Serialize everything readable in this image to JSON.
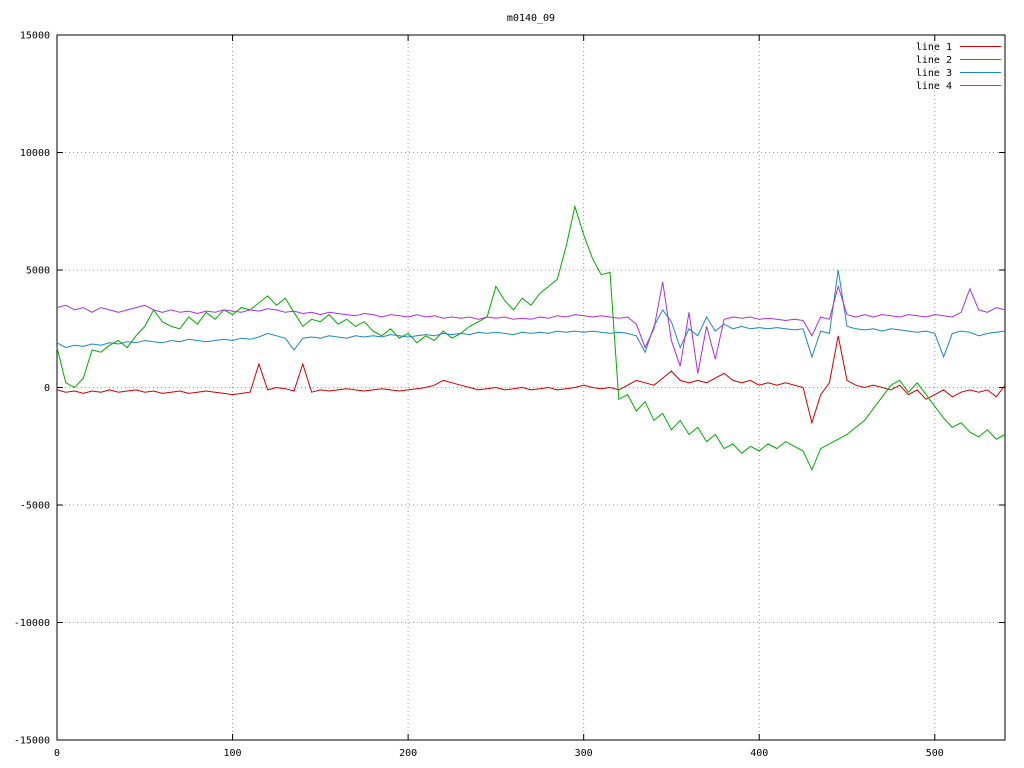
{
  "chart_data": {
    "type": "line",
    "title": "m0140_09",
    "xlabel": "",
    "ylabel": "",
    "xlim": [
      0,
      540
    ],
    "ylim": [
      -15000,
      15000
    ],
    "xticks": [
      0,
      100,
      200,
      300,
      400,
      500
    ],
    "yticks": [
      -15000,
      -10000,
      -5000,
      0,
      5000,
      10000,
      15000
    ],
    "grid": true,
    "grid_style": "dotted",
    "legend_position": "top-right",
    "x": [
      0,
      5,
      10,
      15,
      20,
      25,
      30,
      35,
      40,
      45,
      50,
      55,
      60,
      65,
      70,
      75,
      80,
      85,
      90,
      95,
      100,
      105,
      110,
      115,
      120,
      125,
      130,
      135,
      140,
      145,
      150,
      155,
      160,
      165,
      170,
      175,
      180,
      185,
      190,
      195,
      200,
      205,
      210,
      215,
      220,
      225,
      230,
      235,
      240,
      245,
      250,
      255,
      260,
      265,
      270,
      275,
      280,
      285,
      290,
      295,
      300,
      305,
      310,
      315,
      320,
      325,
      330,
      335,
      340,
      345,
      350,
      355,
      360,
      365,
      370,
      375,
      380,
      385,
      390,
      395,
      400,
      405,
      410,
      415,
      420,
      425,
      430,
      435,
      440,
      445,
      450,
      455,
      460,
      465,
      470,
      475,
      480,
      485,
      490,
      495,
      500,
      505,
      510,
      515,
      520,
      525,
      530,
      535,
      540
    ],
    "series": [
      {
        "name": "line 1",
        "color": "#cc0000",
        "values": [
          -100,
          -200,
          -150,
          -250,
          -150,
          -200,
          -100,
          -200,
          -150,
          -100,
          -200,
          -150,
          -250,
          -200,
          -150,
          -250,
          -200,
          -150,
          -200,
          -250,
          -300,
          -250,
          -200,
          1000,
          -100,
          0,
          -50,
          -150,
          1000,
          -200,
          -100,
          -150,
          -100,
          -50,
          -100,
          -150,
          -100,
          -50,
          -100,
          -150,
          -100,
          -50,
          0,
          100,
          300,
          200,
          100,
          0,
          -100,
          -50,
          0,
          -100,
          -50,
          0,
          -100,
          -50,
          0,
          -100,
          -50,
          0,
          100,
          0,
          -50,
          0,
          -100,
          100,
          300,
          200,
          100,
          400,
          700,
          300,
          200,
          300,
          200,
          400,
          600,
          300,
          200,
          300,
          100,
          200,
          100,
          200,
          100,
          0,
          -1500,
          -300,
          200,
          2200,
          300,
          100,
          0,
          100,
          0,
          -100,
          100,
          -300,
          -100,
          -500,
          -300,
          -100,
          -400,
          -200,
          -100,
          -200,
          -100,
          -400,
          100
        ]
      },
      {
        "name": "line 2",
        "color": "#00aa00",
        "values": [
          1700,
          200,
          0,
          400,
          1600,
          1500,
          1800,
          2000,
          1700,
          2200,
          2600,
          3300,
          2800,
          2600,
          2500,
          3000,
          2700,
          3200,
          2900,
          3300,
          3100,
          3400,
          3300,
          3600,
          3900,
          3500,
          3800,
          3200,
          2600,
          2900,
          2800,
          3100,
          2700,
          2900,
          2600,
          2800,
          2400,
          2200,
          2500,
          2100,
          2300,
          1900,
          2200,
          2000,
          2400,
          2100,
          2300,
          2600,
          2800,
          3000,
          4300,
          3700,
          3300,
          3800,
          3500,
          4000,
          4300,
          4600,
          6000,
          7700,
          6500,
          5500,
          4800,
          4900,
          -500,
          -300,
          -1000,
          -600,
          -1400,
          -1100,
          -1800,
          -1400,
          -2000,
          -1700,
          -2300,
          -2000,
          -2600,
          -2400,
          -2800,
          -2500,
          -2700,
          -2400,
          -2600,
          -2300,
          -2500,
          -2700,
          -3500,
          -2600,
          -2400,
          -2200,
          -2000,
          -1700,
          -1400,
          -900,
          -400,
          100,
          300,
          -200,
          200,
          -300,
          -800,
          -1300,
          -1700,
          -1500,
          -1900,
          -2100,
          -1800,
          -2200,
          -2000
        ]
      },
      {
        "name": "line 3",
        "color": "#1d87b5",
        "values": [
          1900,
          1700,
          1800,
          1750,
          1850,
          1800,
          1900,
          1850,
          1950,
          1900,
          2000,
          1950,
          1900,
          2000,
          1950,
          2050,
          2000,
          1950,
          2000,
          2050,
          2000,
          2100,
          2050,
          2150,
          2300,
          2200,
          2100,
          1600,
          2100,
          2150,
          2100,
          2200,
          2150,
          2100,
          2200,
          2150,
          2200,
          2150,
          2250,
          2200,
          2150,
          2200,
          2250,
          2200,
          2300,
          2250,
          2300,
          2250,
          2350,
          2300,
          2350,
          2300,
          2250,
          2350,
          2300,
          2350,
          2300,
          2400,
          2350,
          2400,
          2350,
          2400,
          2350,
          2300,
          2350,
          2300,
          2200,
          1500,
          2600,
          3300,
          2800,
          1700,
          2500,
          2200,
          3000,
          2400,
          2700,
          2500,
          2600,
          2500,
          2550,
          2500,
          2550,
          2500,
          2450,
          2500,
          1300,
          2400,
          2300,
          5000,
          2600,
          2500,
          2450,
          2500,
          2400,
          2500,
          2450,
          2400,
          2350,
          2400,
          2300,
          1300,
          2300,
          2400,
          2350,
          2200,
          2300,
          2350,
          2400
        ]
      },
      {
        "name": "line 4",
        "color": "#aa30dd",
        "values": [
          3400,
          3500,
          3300,
          3400,
          3200,
          3400,
          3300,
          3200,
          3300,
          3400,
          3500,
          3300,
          3200,
          3300,
          3200,
          3250,
          3150,
          3250,
          3200,
          3300,
          3250,
          3200,
          3300,
          3250,
          3350,
          3300,
          3200,
          3250,
          3150,
          3200,
          3100,
          3200,
          3150,
          3100,
          3050,
          3150,
          3100,
          3000,
          3100,
          3050,
          3000,
          3100,
          3000,
          3050,
          2950,
          3000,
          2950,
          3000,
          2900,
          3000,
          2950,
          3000,
          2900,
          2950,
          2900,
          3000,
          2950,
          3050,
          3000,
          3100,
          3050,
          3000,
          3050,
          3000,
          2950,
          3000,
          2700,
          1700,
          2500,
          4500,
          2000,
          900,
          3200,
          600,
          2600,
          1200,
          2900,
          3000,
          2950,
          3000,
          2900,
          2950,
          2900,
          2850,
          2900,
          2850,
          2200,
          3000,
          2900,
          4300,
          3100,
          3000,
          3100,
          3000,
          3100,
          3050,
          3000,
          3100,
          3050,
          3000,
          3100,
          3050,
          3000,
          3200,
          4200,
          3300,
          3200,
          3400,
          3300
        ]
      }
    ]
  }
}
